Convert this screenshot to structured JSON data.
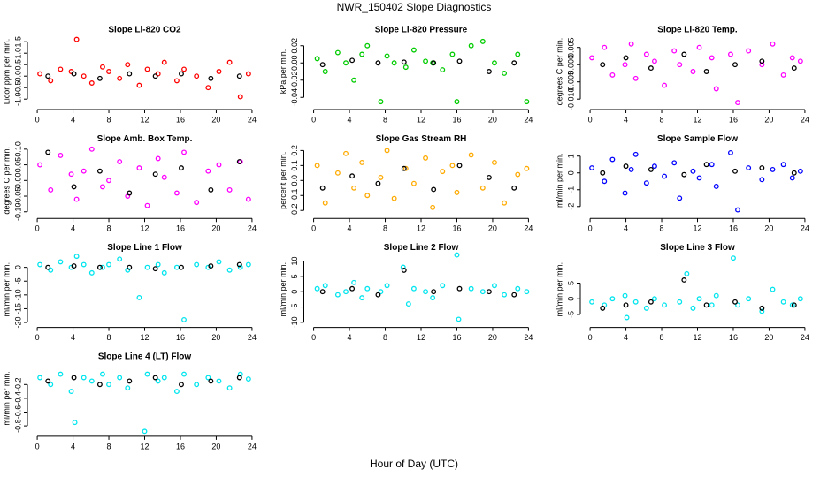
{
  "title": "NWR_150402  Slope Diagnostics",
  "xlabel": "Hour of Day (UTC)",
  "chart_data": [
    {
      "type": "scatter",
      "title": "Slope Li-820 CO2",
      "ylabel": "Licor ppm per min.",
      "xlim": [
        -0.7,
        24.7
      ],
      "xticks": [
        0,
        4,
        8,
        12,
        16,
        20,
        24
      ],
      "ylim": [
        -1.3,
        1.7
      ],
      "yticks": [
        {
          "value": -1,
          "label": "-1.0"
        },
        -0.5,
        {
          "value": 0,
          "label": "0.0"
        },
        0.5,
        {
          "value": 1,
          "label": "1.0"
        },
        1.5
      ],
      "series": [
        {
          "color": "#ff0000",
          "x": [
            0.3,
            1.5,
            2.6,
            3.8,
            4.4,
            5.2,
            6.1,
            7.3,
            8.0,
            9.2,
            10.1,
            11.4,
            12.3,
            13.5,
            14.2,
            15.6,
            16.4,
            17.8,
            19.1,
            20.3,
            21.5,
            22.7,
            23.6
          ],
          "values": [
            0.1,
            -0.2,
            0.3,
            0.2,
            1.6,
            0.0,
            -0.3,
            0.4,
            0.2,
            -0.1,
            0.5,
            -0.4,
            0.3,
            0.1,
            0.6,
            -0.2,
            0.3,
            0.0,
            -0.5,
            0.2,
            0.6,
            -0.9,
            0.1
          ]
        },
        {
          "color": "#000000",
          "x": [
            1.2,
            4.1,
            7.0,
            10.3,
            13.2,
            16.1,
            19.4,
            22.6
          ],
          "values": [
            0.0,
            0.1,
            -0.1,
            0.1,
            0.0,
            0.1,
            -0.1,
            0.0
          ]
        }
      ]
    },
    {
      "type": "scatter",
      "title": "Slope Li-820 Pressure",
      "ylabel": "kPa per min.",
      "xlim": [
        -0.7,
        24.7
      ],
      "xticks": [
        0,
        4,
        8,
        12,
        16,
        20,
        24
      ],
      "ylim": [
        -0.05,
        0.03
      ],
      "yticks": [
        -0.04,
        -0.02,
        {
          "value": 0,
          "label": "0.00"
        },
        0.02
      ],
      "series": [
        {
          "color": "#00cc00",
          "x": [
            0.4,
            1.3,
            2.7,
            3.6,
            4.5,
            5.4,
            6.0,
            7.5,
            8.2,
            9.0,
            10.3,
            11.2,
            12.5,
            13.3,
            14.4,
            15.5,
            16.0,
            17.6,
            18.9,
            20.2,
            21.3,
            22.8,
            23.8
          ],
          "values": [
            0.005,
            -0.01,
            0.012,
            0.0,
            -0.02,
            0.01,
            0.02,
            -0.045,
            0.008,
            0.0,
            -0.005,
            0.015,
            0.002,
            0.0,
            -0.008,
            0.01,
            -0.045,
            0.02,
            0.025,
            0.0,
            -0.012,
            0.01,
            -0.045
          ]
        },
        {
          "color": "#000000",
          "x": [
            1.0,
            4.3,
            7.2,
            10.1,
            13.4,
            16.3,
            19.6,
            22.4
          ],
          "values": [
            -0.002,
            0.003,
            0.0,
            0.001,
            0.0,
            0.002,
            -0.01,
            0.0
          ]
        }
      ]
    },
    {
      "type": "scatter",
      "title": "Slope Li-820 Temp.",
      "ylabel": "degrees C per min.",
      "xlim": [
        -0.7,
        24.7
      ],
      "xticks": [
        0,
        4,
        8,
        12,
        16,
        20,
        24
      ],
      "ylim": [
        -0.012,
        0.008
      ],
      "yticks": [
        {
          "value": -0.01,
          "label": "-0.010"
        },
        -0.005,
        {
          "value": 0,
          "label": "0.000"
        },
        0.005
      ],
      "series": [
        {
          "color": "#ff00ff",
          "x": [
            0.2,
            1.6,
            2.5,
            3.9,
            4.6,
            5.1,
            6.3,
            7.2,
            8.3,
            9.4,
            10.0,
            11.5,
            12.2,
            13.6,
            14.1,
            15.7,
            16.5,
            17.7,
            19.2,
            20.4,
            21.6,
            22.6,
            23.5
          ],
          "values": [
            0.002,
            0.005,
            -0.003,
            0.0,
            0.006,
            -0.004,
            0.003,
            0.001,
            -0.006,
            0.004,
            0.0,
            -0.002,
            0.005,
            0.002,
            -0.007,
            0.003,
            -0.011,
            0.004,
            0.0,
            0.006,
            -0.003,
            0.002,
            0.001
          ]
        },
        {
          "color": "#000000",
          "x": [
            1.4,
            4.0,
            6.8,
            10.5,
            13.0,
            16.2,
            19.2,
            22.8
          ],
          "values": [
            0.0,
            0.002,
            -0.001,
            0.003,
            -0.002,
            0.0,
            0.001,
            -0.001
          ]
        }
      ]
    },
    {
      "type": "scatter",
      "title": "Slope Amb. Box Temp.",
      "ylabel": "degrees C per min.",
      "xlim": [
        -0.7,
        24.7
      ],
      "xticks": [
        0,
        4,
        8,
        12,
        16,
        20,
        24
      ],
      "ylim": [
        -0.11,
        0.11
      ],
      "yticks": [
        {
          "value": -0.1,
          "label": "-0.10"
        },
        -0.05,
        {
          "value": 0,
          "label": "0.00"
        },
        0.05,
        {
          "value": 0.1,
          "label": "0.10"
        }
      ],
      "series": [
        {
          "color": "#ff00ff",
          "x": [
            0.3,
            1.5,
            2.6,
            3.8,
            4.4,
            5.2,
            6.1,
            7.3,
            8.0,
            9.2,
            10.1,
            11.4,
            12.3,
            13.5,
            14.2,
            15.6,
            16.4,
            17.8,
            19.1,
            20.3,
            21.5,
            22.7,
            23.6
          ],
          "values": [
            0.05,
            -0.03,
            0.08,
            0.02,
            -0.06,
            0.03,
            0.1,
            -0.02,
            0.0,
            0.06,
            -0.05,
            0.04,
            -0.08,
            0.07,
            0.01,
            -0.04,
            0.09,
            -0.07,
            0.03,
            0.05,
            -0.03,
            0.06,
            -0.06
          ]
        },
        {
          "color": "#000000",
          "x": [
            1.2,
            4.1,
            7.0,
            10.3,
            13.2,
            16.1,
            19.4,
            22.6
          ],
          "values": [
            0.09,
            -0.02,
            0.03,
            -0.04,
            0.02,
            0.04,
            -0.03,
            0.06
          ]
        }
      ]
    },
    {
      "type": "scatter",
      "title": "Slope Gas Stream RH",
      "ylabel": "percent per min.",
      "xlim": [
        -0.7,
        24.7
      ],
      "xticks": [
        0,
        4,
        8,
        12,
        16,
        20,
        24
      ],
      "ylim": [
        -0.23,
        0.23
      ],
      "yticks": [
        -0.2,
        -0.1,
        {
          "value": 0,
          "label": "0.0"
        },
        0.1,
        0.2
      ],
      "series": [
        {
          "color": "#ffaa00",
          "x": [
            0.4,
            1.3,
            2.7,
            3.6,
            4.5,
            5.4,
            6.0,
            7.5,
            8.2,
            9.0,
            10.3,
            11.2,
            12.5,
            13.3,
            14.4,
            15.5,
            16.0,
            17.6,
            18.9,
            20.2,
            21.3,
            22.8,
            23.8
          ],
          "values": [
            0.1,
            -0.15,
            0.05,
            0.18,
            -0.05,
            0.12,
            -0.1,
            0.02,
            0.2,
            -0.12,
            0.08,
            -0.02,
            0.15,
            -0.18,
            0.06,
            0.1,
            -0.08,
            0.17,
            -0.05,
            0.12,
            -0.15,
            0.04,
            0.08
          ]
        },
        {
          "color": "#000000",
          "x": [
            1.0,
            4.3,
            7.2,
            10.1,
            13.4,
            16.3,
            19.6,
            22.4
          ],
          "values": [
            -0.05,
            0.03,
            -0.02,
            0.08,
            -0.06,
            0.1,
            0.02,
            -0.05
          ]
        }
      ]
    },
    {
      "type": "scatter",
      "title": "Slope Sample Flow",
      "ylabel": "ml/min per min.",
      "xlim": [
        -0.7,
        24.7
      ],
      "xticks": [
        0,
        4,
        8,
        12,
        16,
        20,
        24
      ],
      "ylim": [
        -2.5,
        1.6
      ],
      "yticks": [
        -2,
        -1,
        0,
        1
      ],
      "series": [
        {
          "color": "#0000ff",
          "x": [
            0.2,
            1.6,
            2.5,
            3.9,
            4.6,
            5.1,
            6.3,
            7.2,
            8.3,
            9.4,
            10.0,
            11.5,
            12.2,
            13.6,
            14.1,
            15.7,
            16.5,
            17.7,
            19.2,
            20.4,
            21.6,
            22.6,
            23.5
          ],
          "values": [
            0.3,
            -0.5,
            0.8,
            -1.2,
            0.2,
            1.1,
            -0.6,
            0.4,
            -0.2,
            0.6,
            -1.5,
            0.1,
            -0.3,
            0.5,
            -0.8,
            1.2,
            -2.2,
            0.3,
            -0.4,
            0.2,
            0.5,
            -0.3,
            0.1
          ]
        },
        {
          "color": "#000000",
          "x": [
            1.4,
            4.0,
            6.8,
            10.5,
            13.0,
            16.2,
            19.2,
            22.8
          ],
          "values": [
            0.0,
            0.4,
            0.2,
            -0.1,
            0.5,
            0.1,
            0.3,
            0.0
          ]
        }
      ]
    },
    {
      "type": "scatter",
      "title": "Slope Line 1 Flow",
      "ylabel": "ml/min per min.",
      "xlim": [
        -0.7,
        24.7
      ],
      "xticks": [
        0,
        4,
        8,
        12,
        16,
        20,
        24
      ],
      "ylim": [
        -20.5,
        4.5
      ],
      "yticks": [
        -20,
        -15,
        -10,
        -5,
        0
      ],
      "series": [
        {
          "color": "#00e5ee",
          "x": [
            0.3,
            1.5,
            2.6,
            3.8,
            4.4,
            5.2,
            6.1,
            7.3,
            8.0,
            9.2,
            10.1,
            11.4,
            12.3,
            13.5,
            14.2,
            15.6,
            16.4,
            17.8,
            19.1,
            20.3,
            21.5,
            22.7,
            23.6
          ],
          "values": [
            1,
            -1,
            2,
            0,
            4,
            1,
            -2,
            0,
            1,
            3,
            -1,
            -11,
            0,
            1,
            -2,
            0,
            -19,
            1,
            0,
            2,
            -1,
            0,
            1
          ]
        },
        {
          "color": "#000000",
          "x": [
            1.2,
            4.1,
            7.0,
            10.3,
            13.2,
            16.1,
            19.4,
            22.6
          ],
          "values": [
            0,
            0.5,
            0,
            0,
            -0.5,
            0,
            0.5,
            1
          ]
        }
      ]
    },
    {
      "type": "scatter",
      "title": "Slope Line 2 Flow",
      "ylabel": "ml/min per min.",
      "xlim": [
        -0.7,
        24.7
      ],
      "xticks": [
        0,
        4,
        8,
        12,
        16,
        20,
        24
      ],
      "ylim": [
        -10.5,
        12
      ],
      "yticks": [
        -10,
        -5,
        0,
        5,
        10
      ],
      "series": [
        {
          "color": "#00e5ee",
          "x": [
            0.4,
            1.3,
            2.7,
            3.6,
            4.5,
            5.4,
            6.0,
            7.5,
            8.2,
            10.0,
            10.6,
            11.2,
            12.5,
            13.3,
            14.4,
            16.0,
            16.2,
            17.6,
            18.9,
            20.2,
            21.3,
            22.8,
            23.8
          ],
          "values": [
            1,
            2,
            -1,
            0,
            3,
            -2,
            1,
            0,
            2,
            8,
            -4,
            1,
            0,
            -2,
            2,
            12,
            -9,
            1,
            0,
            2,
            -1,
            1,
            0
          ]
        },
        {
          "color": "#000000",
          "x": [
            1.0,
            4.3,
            7.2,
            10.1,
            13.4,
            16.3,
            19.6,
            22.4
          ],
          "values": [
            0,
            1,
            -1,
            7,
            0,
            1,
            0,
            -1
          ]
        }
      ]
    },
    {
      "type": "scatter",
      "title": "Slope Line 3 Flow",
      "ylabel": "ml/min per min.",
      "xlim": [
        -0.7,
        24.7
      ],
      "xticks": [
        0,
        4,
        8,
        12,
        16,
        20,
        24
      ],
      "ylim": [
        -8,
        14
      ],
      "yticks": [
        -5,
        0,
        5
      ],
      "series": [
        {
          "color": "#00e5ee",
          "x": [
            0.2,
            1.6,
            2.5,
            3.9,
            4.1,
            5.1,
            6.3,
            7.2,
            8.3,
            10.8,
            10.0,
            11.5,
            12.2,
            13.6,
            14.1,
            16.0,
            16.5,
            17.7,
            19.2,
            20.4,
            21.6,
            22.6,
            23.5
          ],
          "values": [
            -1,
            -2,
            0,
            1,
            -6,
            -1,
            -3,
            0,
            -2,
            8,
            -1,
            -3,
            0,
            -2,
            1,
            13,
            -2,
            0,
            -4,
            3,
            -1,
            -2,
            0
          ]
        },
        {
          "color": "#000000",
          "x": [
            1.4,
            4.0,
            6.8,
            10.5,
            13.0,
            16.2,
            19.2,
            22.8
          ],
          "values": [
            -3,
            -2,
            -1,
            6,
            -2,
            -1,
            -3,
            -2
          ]
        }
      ]
    },
    {
      "type": "scatter",
      "title": "Slope Line 4 (LT) Flow",
      "ylabel": "ml/min per min.",
      "xlim": [
        -0.7,
        24.7
      ],
      "xticks": [
        0,
        4,
        8,
        12,
        16,
        20,
        24
      ],
      "ylim": [
        -0.9,
        0.1
      ],
      "yticks": [
        -0.8,
        -0.6,
        -0.4,
        -0.2
      ],
      "series": [
        {
          "color": "#00e5ee",
          "x": [
            0.3,
            1.5,
            2.6,
            3.8,
            4.2,
            5.2,
            6.1,
            7.3,
            8.0,
            9.2,
            10.1,
            12.0,
            12.3,
            13.5,
            14.2,
            15.6,
            16.4,
            17.8,
            19.1,
            20.3,
            21.5,
            22.7,
            23.6
          ],
          "values": [
            -0.1,
            -0.2,
            -0.05,
            -0.3,
            -0.75,
            -0.1,
            -0.15,
            -0.05,
            -0.2,
            -0.1,
            -0.25,
            -0.88,
            -0.05,
            -0.15,
            -0.1,
            -0.3,
            -0.05,
            -0.2,
            -0.1,
            -0.15,
            -0.25,
            -0.05,
            -0.12
          ]
        },
        {
          "color": "#000000",
          "x": [
            1.2,
            4.1,
            7.0,
            10.3,
            13.2,
            16.1,
            19.4,
            22.6
          ],
          "values": [
            -0.15,
            -0.1,
            -0.2,
            -0.15,
            -0.1,
            -0.2,
            -0.15,
            -0.1
          ]
        }
      ]
    }
  ]
}
